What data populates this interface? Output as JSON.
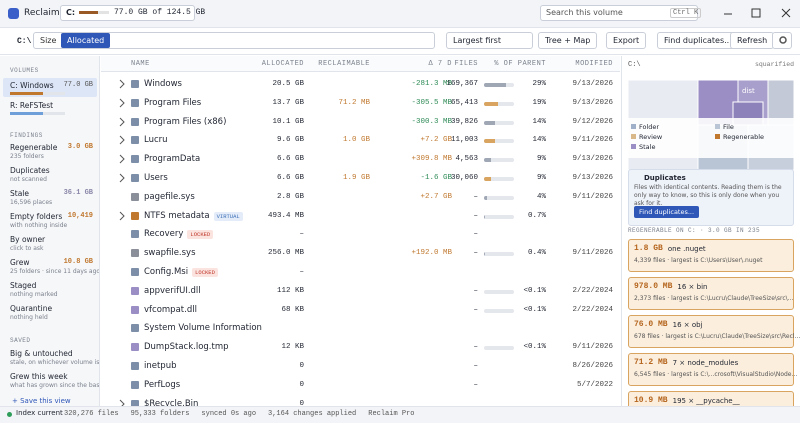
{
  "titlebar": {
    "app": "Reclaim",
    "drive": "C:",
    "usage": "77.0 GB of 124.5 GB",
    "search": "Search this volume",
    "shortcut": "Ctrl K"
  },
  "toolbar": {
    "path": "C:\\",
    "modes": [
      "Size",
      "Allocated"
    ],
    "sort": "Largest first",
    "view": "Tree + Map",
    "export": "Export",
    "find": "Find duplicates...",
    "refresh": "Refresh"
  },
  "sidebar": {
    "volumes_title": "VOLUMES",
    "volumes": [
      {
        "name": "C: Windows",
        "size": "77.0 GB",
        "color": "#c0782f"
      },
      {
        "name": "R: ReFSTest",
        "color": "#6f9fd8"
      }
    ],
    "findings_title": "FINDINGS",
    "findings": [
      {
        "name": "Regenerable",
        "value": "3.0 GB",
        "sub": "235 folders",
        "color": "#c0782f"
      },
      {
        "name": "Duplicates",
        "sub": "not scanned"
      },
      {
        "name": "Stale",
        "value": "36.1 GB",
        "sub": "16,596 places",
        "color": "#8a86a8"
      },
      {
        "name": "Empty folders",
        "value": "10,419",
        "sub": "with nothing inside",
        "color": "#c0782f"
      },
      {
        "name": "By owner",
        "sub": "click to ask"
      },
      {
        "name": "Grew",
        "value": "10.8 GB",
        "sub": "25 folders · since 11 days ago",
        "color": "#c0782f"
      },
      {
        "name": "Staged",
        "sub": "nothing marked"
      },
      {
        "name": "Quarantine",
        "sub": "nothing held"
      }
    ],
    "saved_title": "SAVED",
    "saved": [
      {
        "name": "Big & untouched",
        "sub": "stale, on whichever volume is sca..."
      },
      {
        "name": "Grew this week",
        "sub": "what has grown since the bas..."
      }
    ],
    "save_view": "+ Save this view"
  },
  "table": {
    "headers": [
      "NAME",
      "ALLOCATED",
      "RECLAIMABLE",
      "Δ 7 D",
      "FILES",
      "% OF PARENT",
      "MODIFIED"
    ],
    "rows": [
      {
        "name": "Windows",
        "expandable": true,
        "icon_color": "#7d8fa8",
        "allocated": "20.5 GB",
        "delta": "-281.3 MB",
        "files": "169,367",
        "pct": "29%",
        "modified": "9/13/2026"
      },
      {
        "name": "Program Files",
        "expandable": true,
        "icon_color": "#7d8fa8",
        "allocated": "13.7 GB",
        "reclaimable": "71.2 MB",
        "delta": "-305.5 MB",
        "files": "65,413",
        "pct": "19%",
        "modified": "9/13/2026"
      },
      {
        "name": "Program Files (x86)",
        "expandable": true,
        "icon_color": "#7d8fa8",
        "allocated": "10.1 GB",
        "delta": "-300.3 MB",
        "files": "39,826",
        "pct": "14%",
        "modified": "9/12/2026"
      },
      {
        "name": "Lucru",
        "expandable": true,
        "icon_color": "#7d8fa8",
        "allocated": "9.6 GB",
        "reclaimable": "1.0 GB",
        "delta": "+7.2 GB",
        "files": "11,003",
        "pct": "14%",
        "modified": "9/11/2026"
      },
      {
        "name": "ProgramData",
        "expandable": true,
        "icon_color": "#7d8fa8",
        "allocated": "6.6 GB",
        "delta": "+309.8 MB",
        "files": "4,563",
        "pct": "9%",
        "modified": "9/13/2026"
      },
      {
        "name": "Users",
        "expandable": true,
        "icon_color": "#7d8fa8",
        "allocated": "6.6 GB",
        "reclaimable": "1.9 GB",
        "delta": "-1.6 GB",
        "files": "30,060",
        "pct": "9%",
        "modified": "9/13/2026"
      },
      {
        "name": "pagefile.sys",
        "icon_color": "#8a8f99",
        "allocated": "2.8 GB",
        "delta": "+2.7 GB",
        "files": "–",
        "pct": "4%",
        "modified": "9/11/2026"
      },
      {
        "name": "NTFS metadata",
        "expandable": true,
        "icon_color": "#c0782f",
        "tag": {
          "text": "VIRTUAL",
          "color": "#3d6fb8",
          "bg": "#e3ecf8"
        },
        "allocated": "493.4 MB",
        "files": "–",
        "pct": "0.7%"
      },
      {
        "name": "Recovery",
        "icon_color": "#7d8fa8",
        "tag": {
          "text": "LOCKED",
          "color": "#c0392b",
          "bg": "#fbe3e0"
        },
        "allocated": "–",
        "files": "–"
      },
      {
        "name": "swapfile.sys",
        "icon_color": "#8a8f99",
        "allocated": "256.0 MB",
        "delta": "+192.0 MB",
        "files": "–",
        "pct": "0.4%",
        "modified": "9/11/2026"
      },
      {
        "name": "Config.Msi",
        "icon_color": "#7d8fa8",
        "tag": {
          "text": "LOCKED",
          "color": "#c0392b",
          "bg": "#fbe3e0"
        },
        "allocated": "–"
      },
      {
        "name": "appverifUI.dll",
        "icon_color": "#9b8ec4",
        "allocated": "112 KB",
        "files": "–",
        "pct": "<0.1%",
        "modified": "2/22/2024"
      },
      {
        "name": "vfcompat.dll",
        "icon_color": "#9b8ec4",
        "allocated": "68 KB",
        "files": "–",
        "pct": "<0.1%",
        "modified": "2/22/2024"
      },
      {
        "name": "System Volume Information",
        "icon_color": "#7d8fa8"
      },
      {
        "name": "DumpStack.log.tmp",
        "icon_color": "#9b8ec4",
        "allocated": "12 KB",
        "files": "–",
        "pct": "<0.1%",
        "modified": "9/11/2026"
      },
      {
        "name": "inetpub",
        "icon_color": "#7d8fa8",
        "allocated": "0",
        "files": "–",
        "modified": "8/26/2026"
      },
      {
        "name": "PerfLogs",
        "icon_color": "#7d8fa8",
        "allocated": "0",
        "files": "–",
        "modified": "5/7/2022"
      },
      {
        "name": "$Recycle.Bin",
        "expandable": true,
        "icon_color": "#7d8fa8",
        "allocated": "0"
      }
    ]
  },
  "panel": {
    "path": "C:\\",
    "layout": "squarified",
    "map_label": "dist",
    "legend": [
      {
        "name": "Folder",
        "color": "#9fb0c8"
      },
      {
        "name": "File",
        "color": "#b9c4d4"
      },
      {
        "name": "Review",
        "color": "#d9b98a"
      },
      {
        "name": "Regenerable",
        "color": "#c0782f"
      },
      {
        "name": "Stale",
        "color": "#9b8ec4"
      }
    ],
    "dup_title": "Duplicates",
    "dup_text": "Files with identical contents. Reading them is the only way to know, so this is only done when you ask for it.",
    "dup_button": "Find duplicates...",
    "regen_title": "REGENERABLE ON C: · 3.0 GB IN 235",
    "cards": [
      {
        "size": "1.8 GB",
        "name": "one .nuget",
        "sub": "4,339 files · largest is C:\\Users\\User\\.nuget"
      },
      {
        "size": "978.0 MB",
        "name": "16 × bin",
        "sub": "2,373 files · largest is C:\\Lucru\\Claude\\TreeSize\\src\\..."
      },
      {
        "size": "76.0 MB",
        "name": "16 × obj",
        "sub": "678 files · largest is C:\\Lucru\\Claude\\TreeSize\\src\\Recl..."
      },
      {
        "size": "71.2 MB",
        "name": "7 × node_modules",
        "sub": "6,545 files · largest is C:\\...crosoft\\VisualStudio\\Node..."
      },
      {
        "size": "10.9 MB",
        "name": "195 × __pycache__"
      }
    ]
  },
  "status": {
    "state": "Index current",
    "items": [
      "320,276 files",
      "95,333 folders",
      "synced 0s ago",
      "3,164 changes applied",
      "Reclaim Pro"
    ]
  }
}
